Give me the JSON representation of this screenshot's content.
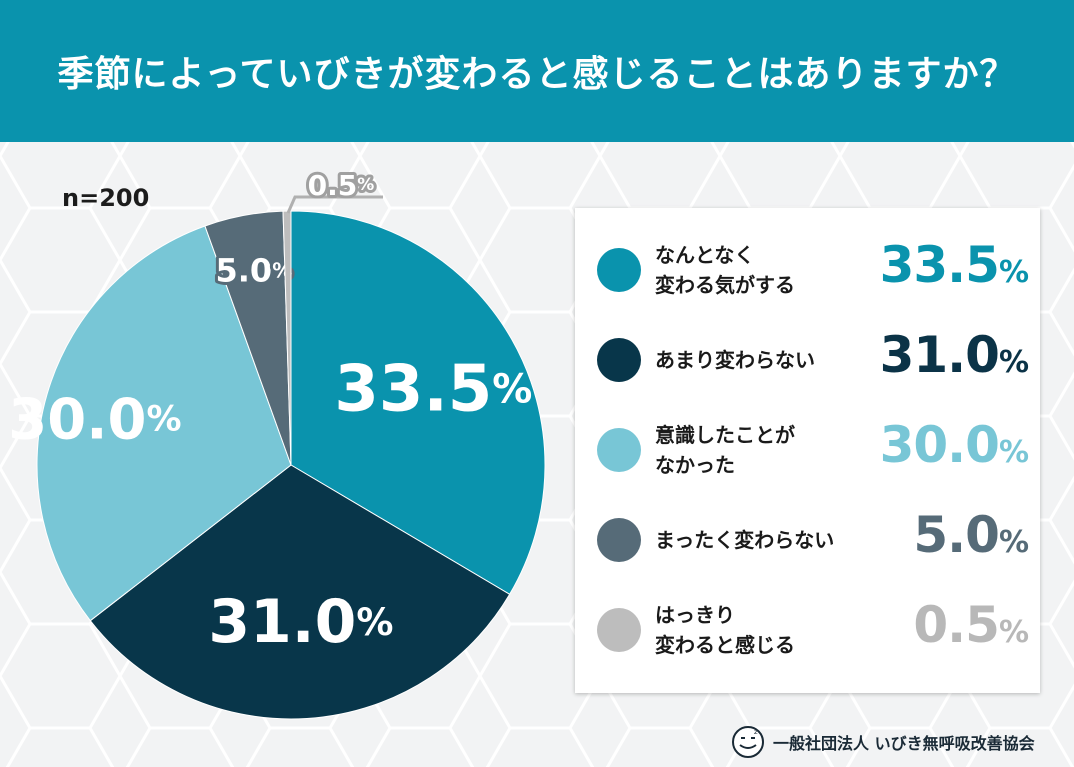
{
  "header": {
    "title": "季節によっていびきが変わると感じることはありますか？"
  },
  "sample_size": "n=200",
  "colors": {
    "header_bg": "#0a93ad",
    "slice_1": "#0a93ad",
    "slice_2": "#08364a",
    "slice_3": "#78c6d6",
    "slice_4": "#566b78",
    "slice_5": "#bdbdbd"
  },
  "chart_data": {
    "type": "pie",
    "title": "季節によっていびきが変わると感じることはありますか？",
    "series": [
      {
        "name": "なんとなく\n変わる気がする",
        "value": 33.5,
        "label": "33.5",
        "color": "#0a93ad"
      },
      {
        "name": "あまり変わらない",
        "value": 31.0,
        "label": "31.0",
        "color": "#08364a"
      },
      {
        "name": "意識したことが\nなかった",
        "value": 30.0,
        "label": "30.0",
        "color": "#78c6d6"
      },
      {
        "name": "まったく変わらない",
        "value": 5.0,
        "label": "5.0",
        "color": "#566b78"
      },
      {
        "name": "はっきり\n変わると感じる",
        "value": 0.5,
        "label": "0.5",
        "color": "#bdbdbd"
      }
    ],
    "percent_sign": "%",
    "start_angle": "12 o'clock",
    "direction": "clockwise"
  },
  "footer": {
    "organization": "一般社団法人 いびき無呼吸改善協会",
    "logo_icon": "snoring-face-icon"
  }
}
